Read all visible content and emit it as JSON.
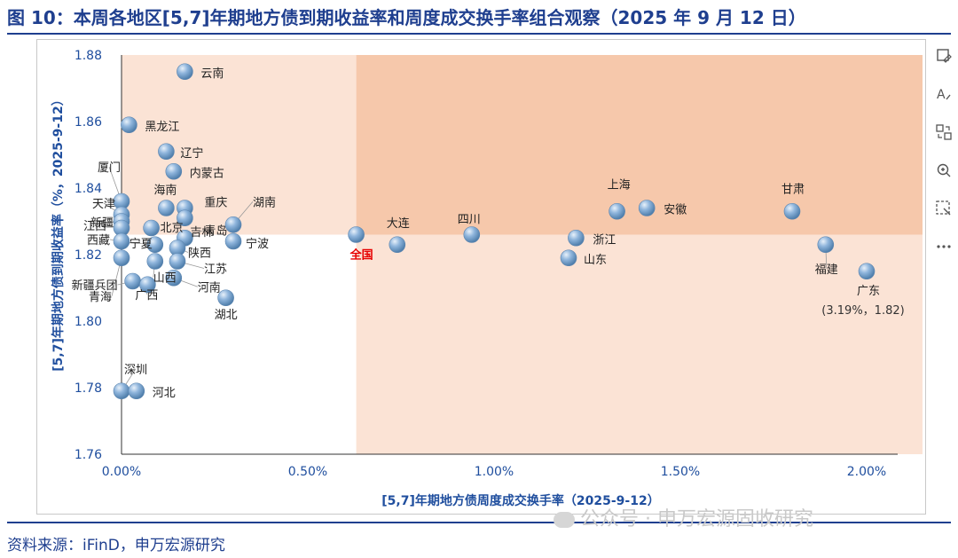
{
  "title": "图 10：本周各地区[5,7]年期地方债到期收益率和周度成交换手率组合观察（2025 年 9 月 12 日）",
  "source": "资料来源：iFinD，申万宏源研究",
  "watermark": "公众号 · 申万宏源固收研究",
  "colors": {
    "title_blue": "#1f3f8f",
    "axis_label_blue": "#1f4e9e",
    "quadrant_light": "#fbe3d5",
    "quadrant_dark": "#f6c8ab",
    "quadrant_white": "#ffffff",
    "highlight_label": "#e60000",
    "bubble": "#7aa6cf"
  },
  "toolbar": {
    "icons": [
      "image-edit-icon",
      "text-edit-icon",
      "convert-icon",
      "zoom-icon",
      "screenshot-icon",
      "more-icon"
    ]
  },
  "chart_data": {
    "type": "scatter",
    "xlabel": "[5,7]年期地方债周度成交换手率（2025-9-12）",
    "ylabel": "[5,7]年期地方债到期收益率（%，2025-9-12）",
    "xlim": [
      0,
      2.15
    ],
    "ylim": [
      1.76,
      1.88
    ],
    "x_ticks": [
      "0.00%",
      "0.50%",
      "1.00%",
      "1.50%",
      "2.00%"
    ],
    "x_tick_values": [
      0,
      0.5,
      1.0,
      1.5,
      2.0
    ],
    "y_ticks": [
      "1.76",
      "1.78",
      "1.80",
      "1.82",
      "1.84",
      "1.86",
      "1.88"
    ],
    "y_tick_values": [
      1.76,
      1.78,
      1.8,
      1.82,
      1.84,
      1.86,
      1.88
    ],
    "quadrant_divider": {
      "x": 0.63,
      "y": 1.826
    },
    "annotation": "(3.19%，1.82)",
    "points": [
      {
        "name": "云南",
        "x": 0.17,
        "y": 1.875
      },
      {
        "name": "黑龙江",
        "x": 0.02,
        "y": 1.859
      },
      {
        "name": "辽宁",
        "x": 0.12,
        "y": 1.851
      },
      {
        "name": "内蒙古",
        "x": 0.14,
        "y": 1.845
      },
      {
        "name": "厦门",
        "x": 0.0,
        "y": 1.836
      },
      {
        "name": "海南",
        "x": 0.12,
        "y": 1.834
      },
      {
        "name": "重庆",
        "x": 0.17,
        "y": 1.834
      },
      {
        "name": "天津",
        "x": 0.0,
        "y": 1.832
      },
      {
        "name": "新疆",
        "x": 0.0,
        "y": 1.83
      },
      {
        "name": "吉林",
        "x": 0.17,
        "y": 1.831
      },
      {
        "name": "湖南",
        "x": 0.3,
        "y": 1.829
      },
      {
        "name": "江西",
        "x": 0.0,
        "y": 1.828
      },
      {
        "name": "北京",
        "x": 0.08,
        "y": 1.828
      },
      {
        "name": "宁波",
        "x": 0.3,
        "y": 1.824
      },
      {
        "name": "西藏",
        "x": 0.0,
        "y": 1.824
      },
      {
        "name": "青岛",
        "x": 0.17,
        "y": 1.825
      },
      {
        "name": "宁夏",
        "x": 0.09,
        "y": 1.823
      },
      {
        "name": "陕西",
        "x": 0.15,
        "y": 1.822
      },
      {
        "name": "全国",
        "x": 0.63,
        "y": 1.826,
        "highlight": true
      },
      {
        "name": "大连",
        "x": 0.74,
        "y": 1.823
      },
      {
        "name": "四川",
        "x": 0.94,
        "y": 1.826
      },
      {
        "name": "浙江",
        "x": 1.22,
        "y": 1.825
      },
      {
        "name": "山东",
        "x": 1.2,
        "y": 1.819
      },
      {
        "name": "上海",
        "x": 1.33,
        "y": 1.833
      },
      {
        "name": "安徽",
        "x": 1.41,
        "y": 1.834
      },
      {
        "name": "甘肃",
        "x": 1.8,
        "y": 1.833
      },
      {
        "name": "福建",
        "x": 1.89,
        "y": 1.823
      },
      {
        "name": "广东",
        "x": 2.0,
        "y": 1.815
      },
      {
        "name": "江苏",
        "x": 0.15,
        "y": 1.818
      },
      {
        "name": "河南",
        "x": 0.14,
        "y": 1.813
      },
      {
        "name": "新疆兵团",
        "x": 0.03,
        "y": 1.812
      },
      {
        "name": "广西",
        "x": 0.07,
        "y": 1.811
      },
      {
        "name": "山西",
        "x": 0.09,
        "y": 1.818
      },
      {
        "name": "青海",
        "x": 0.0,
        "y": 1.819
      },
      {
        "name": "湖北",
        "x": 0.28,
        "y": 1.807
      },
      {
        "name": "深圳",
        "x": 0.0,
        "y": 1.779
      },
      {
        "name": "河北",
        "x": 0.04,
        "y": 1.779
      }
    ]
  }
}
